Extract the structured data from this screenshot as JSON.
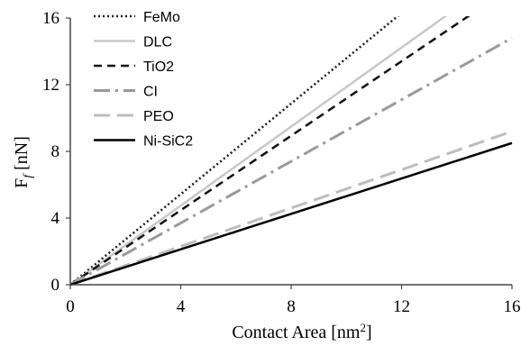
{
  "chart_data": {
    "type": "line",
    "xlabel": {
      "main": "Contact Area [nm",
      "sup": "2",
      "end": "]"
    },
    "ylabel": {
      "main": "F",
      "sub": "f",
      "rest": " [nN]"
    },
    "xlim": [
      0,
      16
    ],
    "ylim": [
      0,
      16
    ],
    "xticks": [
      0,
      4,
      8,
      12,
      16
    ],
    "yticks": [
      0,
      4,
      8,
      12,
      16
    ],
    "grid": false,
    "legend_position": "top-left",
    "series": [
      {
        "name": "FeMo",
        "x": [
          0,
          12
        ],
        "y": [
          0,
          16.3
        ],
        "color": "#1a1a1a",
        "style": "dotted"
      },
      {
        "name": "DLC",
        "x": [
          0,
          14
        ],
        "y": [
          0,
          16.6
        ],
        "color": "#c8c8c8",
        "style": "solid"
      },
      {
        "name": "TiO2",
        "x": [
          0,
          14.5
        ],
        "y": [
          0,
          16.2
        ],
        "color": "#111111",
        "style": "dashed"
      },
      {
        "name": "CI",
        "x": [
          0,
          16
        ],
        "y": [
          0,
          14.8
        ],
        "color": "#9a9a9a",
        "style": "dashdot"
      },
      {
        "name": "PEO",
        "x": [
          0,
          16
        ],
        "y": [
          0,
          9.2
        ],
        "color": "#bdbdbd",
        "style": "longdash"
      },
      {
        "name": "Ni-SiC2",
        "x": [
          0,
          16
        ],
        "y": [
          0,
          8.5
        ],
        "color": "#000000",
        "style": "solid"
      }
    ]
  }
}
